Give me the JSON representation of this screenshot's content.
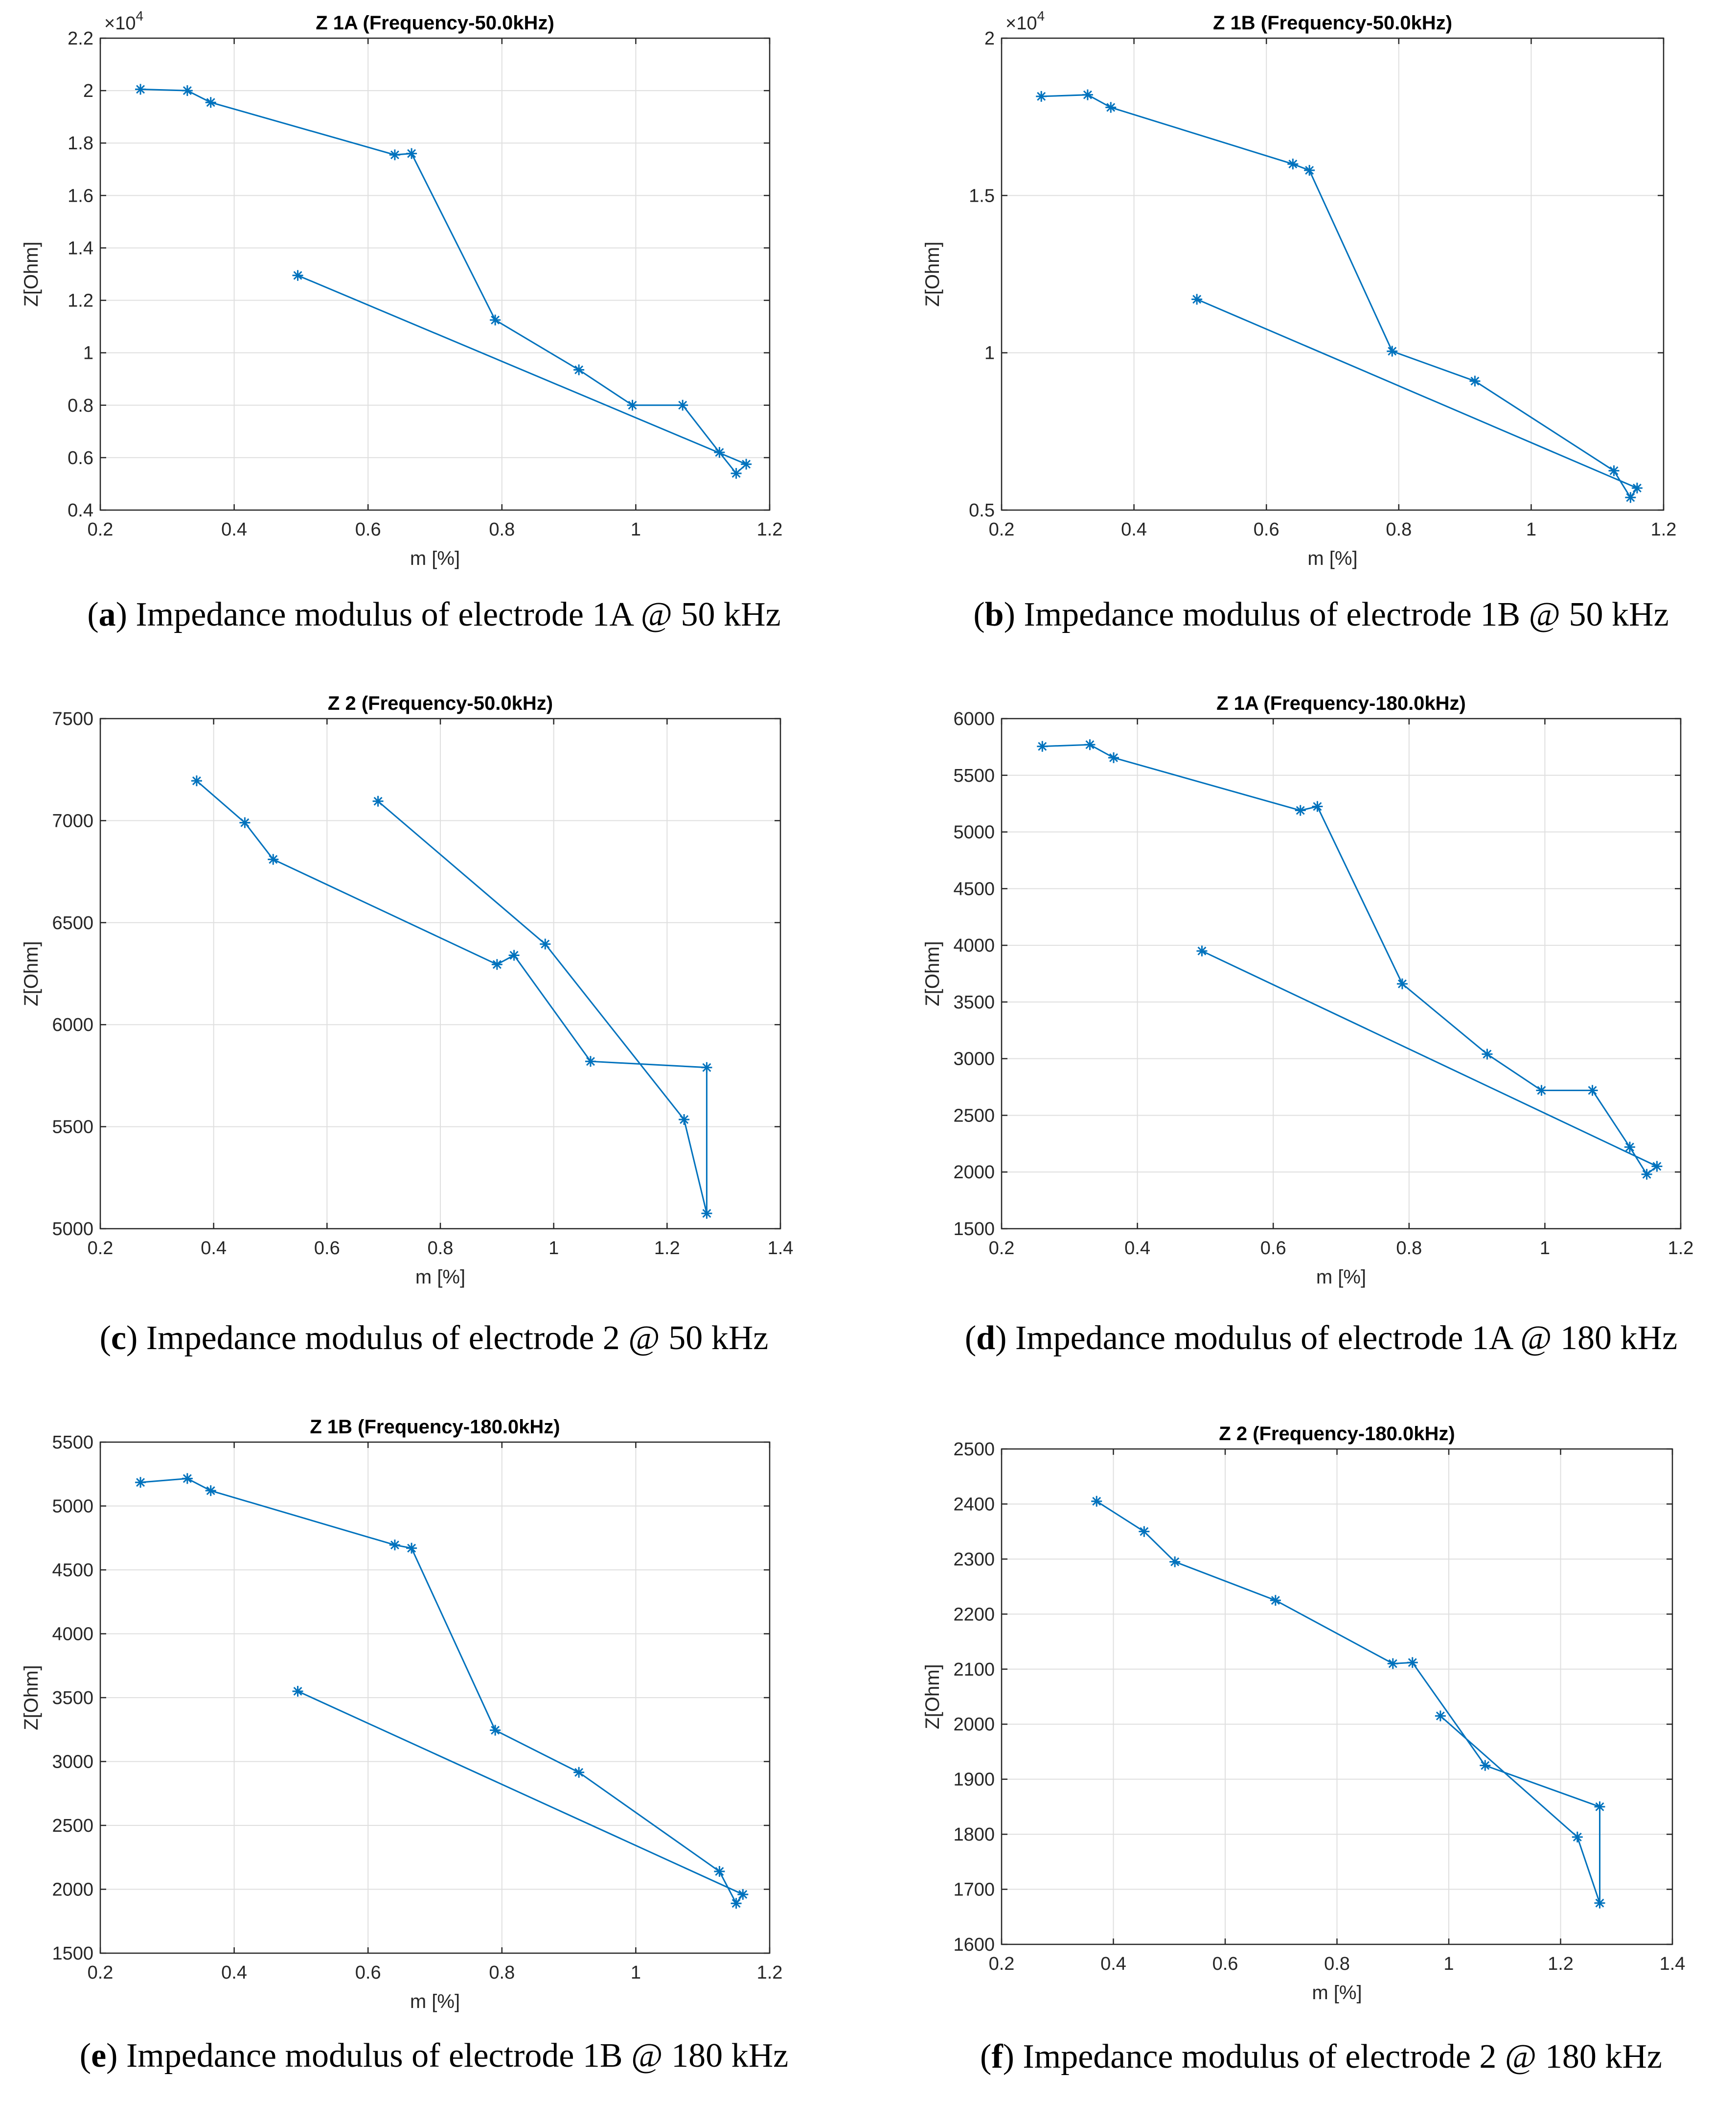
{
  "chart_data": [
    {
      "type": "line",
      "panel_label": "a",
      "caption_text": "Impedance modulus of electrode 1A @ 50 kHz",
      "title": "Z 1A (Frequency-50.0kHz)",
      "xlabel": "m [%]",
      "ylabel": "Z[Ohm]",
      "xlim": [
        0.2,
        1.2
      ],
      "ylim": [
        0.4,
        2.2
      ],
      "xticks": [
        0.2,
        0.4,
        0.6,
        0.8,
        1,
        1.2
      ],
      "xtick_labels": [
        "0.2",
        "0.4",
        "0.6",
        "0.8",
        "1",
        "1.2"
      ],
      "yticks": [
        0.4,
        0.6,
        0.8,
        1,
        1.2,
        1.4,
        1.6,
        1.8,
        2,
        2.2
      ],
      "ytick_labels": [
        "0.4",
        "0.6",
        "0.8",
        "1",
        "1.2",
        "1.4",
        "1.6",
        "1.8",
        "2",
        "2.2"
      ],
      "exponent_label": "×10",
      "exponent_power": "4",
      "grid": true,
      "marker": "*",
      "color": "#0072BD",
      "x": [
        0.26,
        0.33,
        0.365,
        0.64,
        0.665,
        0.79,
        0.915,
        0.995,
        1.07,
        1.125,
        1.15,
        1.165,
        0.495
      ],
      "y": [
        2.005,
        2.0,
        1.955,
        1.755,
        1.76,
        1.125,
        0.935,
        0.8,
        0.8,
        0.62,
        0.54,
        0.575,
        1.295
      ]
    },
    {
      "type": "line",
      "panel_label": "b",
      "caption_text": "Impedance modulus of electrode 1B @ 50 kHz",
      "title": "Z 1B (Frequency-50.0kHz)",
      "xlabel": "m [%]",
      "ylabel": "Z[Ohm]",
      "xlim": [
        0.2,
        1.2
      ],
      "ylim": [
        0.5,
        2.0
      ],
      "xticks": [
        0.2,
        0.4,
        0.6,
        0.8,
        1,
        1.2
      ],
      "xtick_labels": [
        "0.2",
        "0.4",
        "0.6",
        "0.8",
        "1",
        "1.2"
      ],
      "yticks": [
        0.5,
        1,
        1.5,
        2
      ],
      "ytick_labels": [
        "0.5",
        "1",
        "1.5",
        "2"
      ],
      "exponent_label": "×10",
      "exponent_power": "4",
      "grid": true,
      "marker": "*",
      "color": "#0072BD",
      "x": [
        0.26,
        0.33,
        0.365,
        0.64,
        0.665,
        0.79,
        0.915,
        1.125,
        1.15,
        1.16,
        0.495
      ],
      "y": [
        1.815,
        1.82,
        1.78,
        1.6,
        1.58,
        1.005,
        0.91,
        0.625,
        0.54,
        0.57,
        1.17
      ]
    },
    {
      "type": "line",
      "panel_label": "c",
      "caption_text": "Impedance modulus of electrode 2 @ 50 kHz",
      "title": "Z 2 (Frequency-50.0kHz)",
      "xlabel": "m [%]",
      "ylabel": "Z[Ohm]",
      "xlim": [
        0.2,
        1.4
      ],
      "ylim": [
        5000,
        7500
      ],
      "xticks": [
        0.2,
        0.4,
        0.6,
        0.8,
        1,
        1.2,
        1.4
      ],
      "xtick_labels": [
        "0.2",
        "0.4",
        "0.6",
        "0.8",
        "1",
        "1.2",
        "1.4"
      ],
      "yticks": [
        5000,
        5500,
        6000,
        6500,
        7000,
        7500
      ],
      "ytick_labels": [
        "5000",
        "5500",
        "6000",
        "6500",
        "7000",
        "7500"
      ],
      "grid": true,
      "marker": "*",
      "color": "#0072BD",
      "x": [
        0.37,
        0.455,
        0.505,
        0.9,
        0.93,
        1.065,
        1.27,
        1.27,
        1.23,
        0.985,
        0.69
      ],
      "y": [
        7195,
        6990,
        6810,
        6295,
        6340,
        5820,
        5790,
        5075,
        5535,
        6395,
        7095
      ]
    },
    {
      "type": "line",
      "panel_label": "d",
      "caption_text": "Impedance modulus of electrode 1A @ 180 kHz",
      "title": "Z 1A (Frequency-180.0kHz)",
      "xlabel": "m [%]",
      "ylabel": "Z[Ohm]",
      "xlim": [
        0.2,
        1.2
      ],
      "ylim": [
        1500,
        6000
      ],
      "xticks": [
        0.2,
        0.4,
        0.6,
        0.8,
        1,
        1.2
      ],
      "xtick_labels": [
        "0.2",
        "0.4",
        "0.6",
        "0.8",
        "1",
        "1.2"
      ],
      "yticks": [
        1500,
        2000,
        2500,
        3000,
        3500,
        4000,
        4500,
        5000,
        5500,
        6000
      ],
      "ytick_labels": [
        "1500",
        "2000",
        "2500",
        "3000",
        "3500",
        "4000",
        "4500",
        "5000",
        "5500",
        "6000"
      ],
      "grid": true,
      "marker": "*",
      "color": "#0072BD",
      "x": [
        0.26,
        0.33,
        0.365,
        0.64,
        0.665,
        0.79,
        0.915,
        0.995,
        1.07,
        1.125,
        1.15,
        1.165,
        0.495
      ],
      "y": [
        5755,
        5770,
        5655,
        5190,
        5225,
        3660,
        3040,
        2720,
        2720,
        2220,
        1980,
        2050,
        3950
      ]
    },
    {
      "type": "line",
      "panel_label": "e",
      "caption_text": "Impedance modulus of electrode 1B @ 180 kHz",
      "title": "Z 1B (Frequency-180.0kHz)",
      "xlabel": "m [%]",
      "ylabel": "Z[Ohm]",
      "xlim": [
        0.2,
        1.2
      ],
      "ylim": [
        1500,
        5500
      ],
      "xticks": [
        0.2,
        0.4,
        0.6,
        0.8,
        1,
        1.2
      ],
      "xtick_labels": [
        "0.2",
        "0.4",
        "0.6",
        "0.8",
        "1",
        "1.2"
      ],
      "yticks": [
        1500,
        2000,
        2500,
        3000,
        3500,
        4000,
        4500,
        5000,
        5500
      ],
      "ytick_labels": [
        "1500",
        "2000",
        "2500",
        "3000",
        "3500",
        "4000",
        "4500",
        "5000",
        "5500"
      ],
      "grid": true,
      "marker": "*",
      "color": "#0072BD",
      "x": [
        0.26,
        0.33,
        0.365,
        0.64,
        0.665,
        0.79,
        0.915,
        1.125,
        1.15,
        1.16,
        0.495
      ],
      "y": [
        5185,
        5215,
        5120,
        4695,
        4670,
        3245,
        2915,
        2140,
        1890,
        1960,
        3550
      ]
    },
    {
      "type": "line",
      "panel_label": "f",
      "caption_text": "Impedance modulus of electrode 2 @ 180 kHz",
      "title": "Z 2 (Frequency-180.0kHz)",
      "xlabel": "m [%]",
      "ylabel": "Z[Ohm]",
      "xlim": [
        0.2,
        1.4
      ],
      "ylim": [
        1600,
        2500
      ],
      "xticks": [
        0.2,
        0.4,
        0.6,
        0.8,
        1,
        1.2,
        1.4
      ],
      "xtick_labels": [
        "0.2",
        "0.4",
        "0.6",
        "0.8",
        "1",
        "1.2",
        "1.4"
      ],
      "yticks": [
        1600,
        1700,
        1800,
        1900,
        2000,
        2100,
        2200,
        2300,
        2400,
        2500
      ],
      "ytick_labels": [
        "1600",
        "1700",
        "1800",
        "1900",
        "2000",
        "2100",
        "2200",
        "2300",
        "2400",
        "2500"
      ],
      "grid": true,
      "marker": "*",
      "color": "#0072BD",
      "x": [
        0.37,
        0.455,
        0.51,
        0.69,
        0.9,
        0.935,
        1.065,
        1.27,
        1.27,
        1.23,
        0.985
      ],
      "y": [
        2405,
        2350,
        2295,
        2225,
        2110,
        2112,
        1925,
        1850,
        1675,
        1795,
        2015
      ]
    }
  ]
}
